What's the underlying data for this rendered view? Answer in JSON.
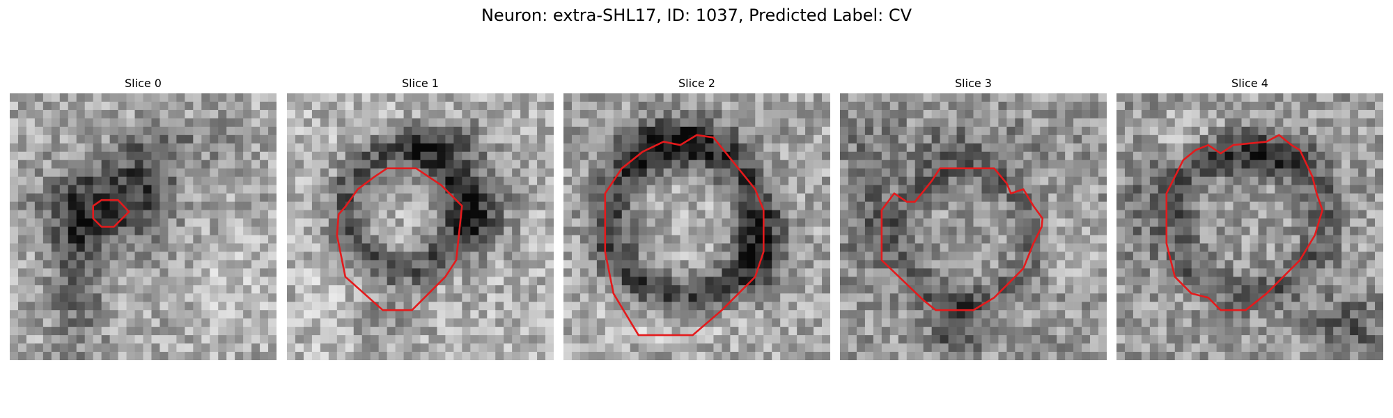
{
  "figure": {
    "title": "Neuron: extra-SHL17, ID: 1037, Predicted Label: CV"
  },
  "panels": [
    {
      "title": "Slice 0"
    },
    {
      "title": "Slice 1"
    },
    {
      "title": "Slice 2"
    },
    {
      "title": "Slice 3"
    },
    {
      "title": "Slice 4"
    }
  ],
  "colors": {
    "contour": "#e41a1c",
    "background": "#ffffff"
  }
}
